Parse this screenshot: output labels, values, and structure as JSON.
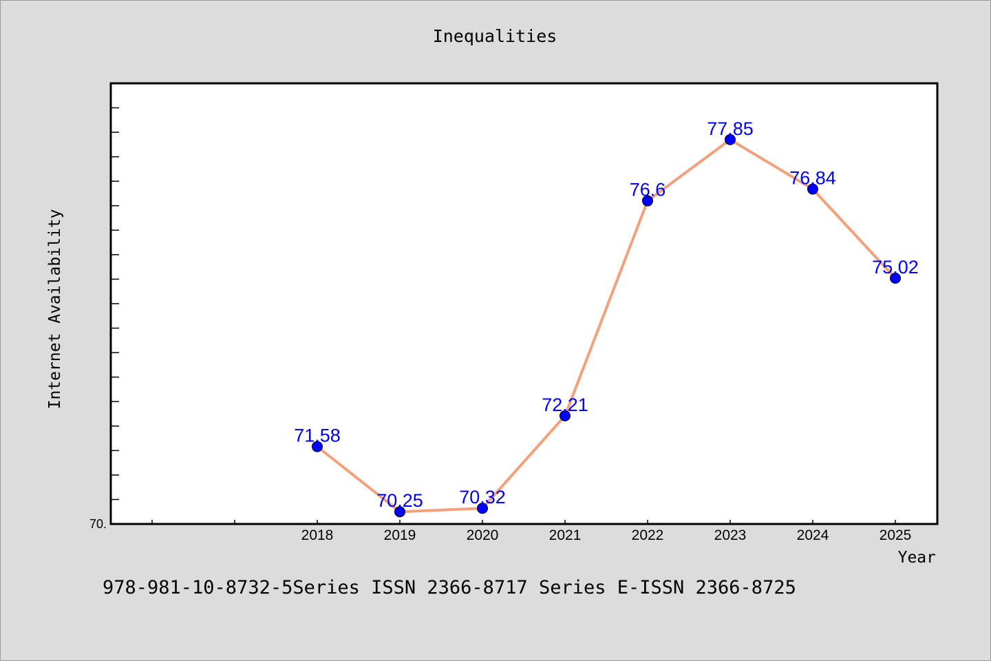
{
  "chart_data": {
    "type": "line",
    "title": "Inequalities",
    "xlabel": "Year",
    "ylabel": "Internet Availability",
    "x": [
      "2018",
      "2019",
      "2020",
      "2021",
      "2022",
      "2023",
      "2024",
      "2025"
    ],
    "series": [
      {
        "values": [
          71.58,
          70.25,
          70.32,
          72.21,
          76.6,
          77.85,
          76.84,
          75.02
        ],
        "data_labels": [
          "71.58",
          "70.25",
          "70.32",
          "72.21",
          "76.6",
          "77.85",
          "76.84",
          "75.02"
        ]
      }
    ],
    "y_tick_label": "70.",
    "ylim": [
      70,
      79
    ],
    "grid": false,
    "legend": "none",
    "colors": {
      "line": "#f4a07a",
      "marker": "#0000ff",
      "data_label": "#0000ff",
      "plot_bg": "#ffffff",
      "figure_bg": "#dcdcdc"
    }
  },
  "footer_text": "978-981-10-8732-5Series ISSN 2366-8717 Series E-ISSN 2366-8725"
}
